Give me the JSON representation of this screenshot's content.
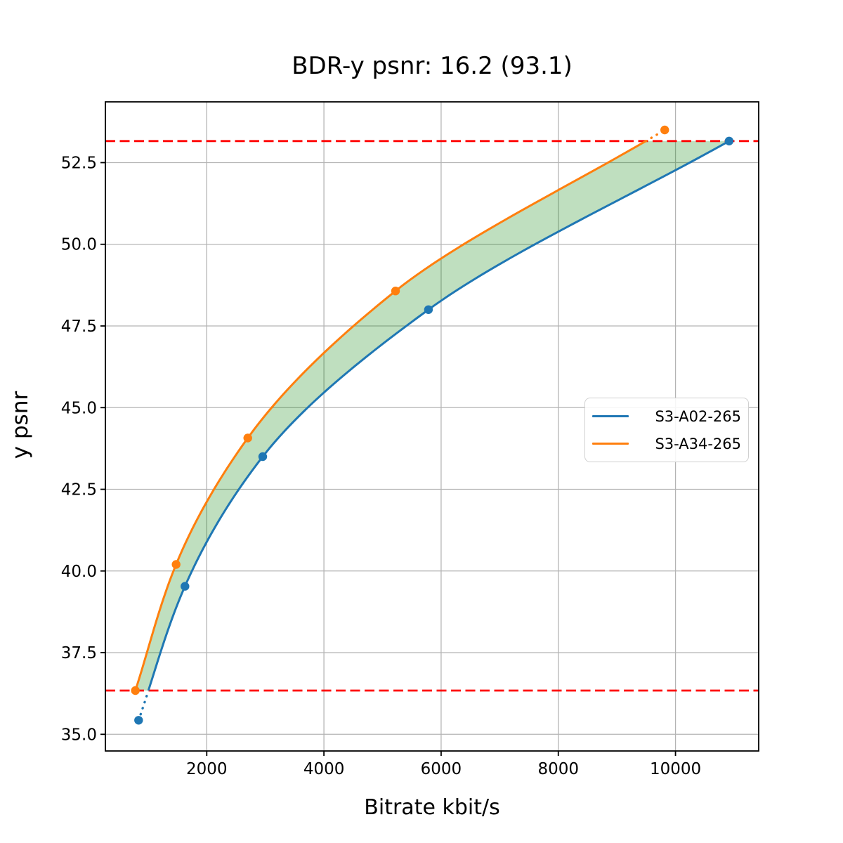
{
  "chart_data": {
    "type": "line",
    "title": "BDR-y psnr: 16.2 (93.1)",
    "xlabel": "Bitrate kbit/s",
    "ylabel": "y psnr",
    "xlim": [
      270,
      11420
    ],
    "ylim": [
      34.49,
      54.36
    ],
    "xticks": [
      2000,
      4000,
      6000,
      8000,
      10000
    ],
    "xtick_labels": [
      "2000",
      "4000",
      "6000",
      "8000",
      "10000"
    ],
    "yticks": [
      35.0,
      37.5,
      40.0,
      42.5,
      45.0,
      47.5,
      50.0,
      52.5
    ],
    "ytick_labels": [
      "35.0",
      "37.5",
      "40.0",
      "42.5",
      "45.0",
      "47.5",
      "50.0",
      "52.5"
    ],
    "grid": true,
    "grid_color": "#b4b4b4",
    "series": [
      {
        "name": "S3-A02-265",
        "color": "#1f77b4",
        "marker": "circle",
        "points_bitrate_psnr": [
          [
            837,
            35.43
          ],
          [
            1628,
            39.53
          ],
          [
            2955,
            43.5
          ],
          [
            5784,
            48.0
          ],
          [
            10915,
            53.16
          ]
        ]
      },
      {
        "name": "S3-A34-265",
        "color": "#ff7f0e",
        "marker": "circle",
        "points_bitrate_psnr": [
          [
            782,
            36.34
          ],
          [
            1477,
            40.2
          ],
          [
            2700,
            44.07
          ],
          [
            5221,
            48.57
          ],
          [
            9816,
            53.5
          ]
        ]
      }
    ],
    "hlines": {
      "color": "#ff0000",
      "style": "dashed",
      "values": [
        36.34,
        53.16
      ]
    },
    "fill_between": {
      "color": "#008000",
      "alpha": 0.25,
      "psnr_range": [
        36.34,
        53.16
      ]
    },
    "legend": {
      "position": "center-right",
      "entries": [
        "S3-A02-265",
        "S3-A34-265"
      ]
    }
  }
}
